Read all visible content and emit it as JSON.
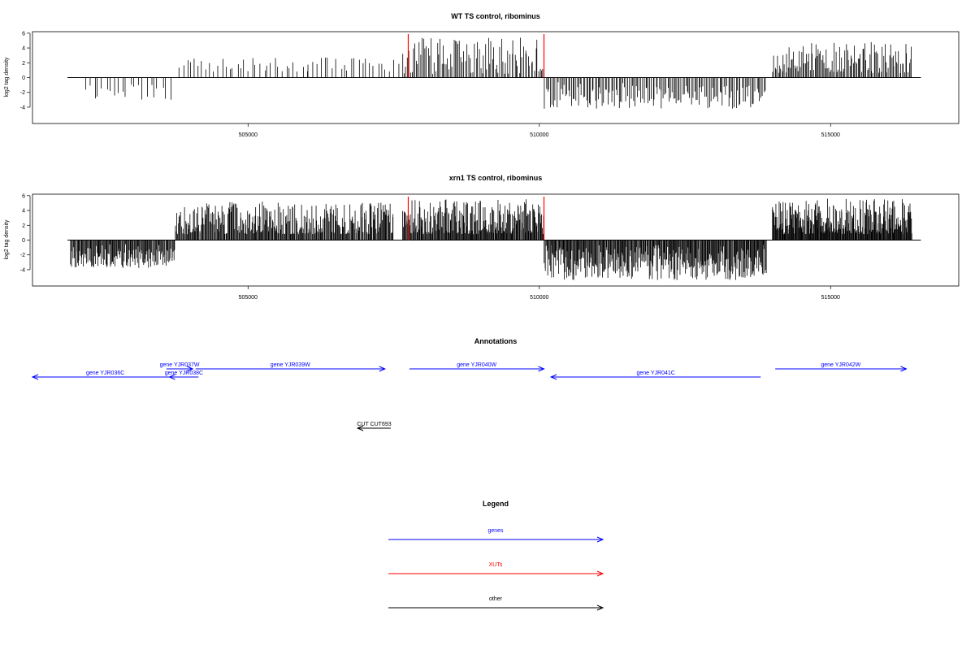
{
  "chart_data": [
    {
      "type": "bar",
      "title": "WT TS control, ribominus",
      "ylabel": "log2 tag density",
      "xlabel": "",
      "xlim": [
        501300,
        517200
      ],
      "ylim": [
        -6.2,
        6.2
      ],
      "x_ticks": [
        505000,
        510000,
        515000
      ],
      "x_tick_labels": [
        "505000",
        "510000",
        "515000"
      ],
      "y_ticks": [
        -4,
        -2,
        0,
        2,
        4,
        6
      ],
      "y_tick_labels": [
        "-4",
        "-2",
        "0",
        "2",
        "4",
        "6"
      ],
      "grid": false,
      "baseline": {
        "start": 501900,
        "end": 516550
      },
      "markers": [
        507750,
        510080
      ],
      "marker_color": "#ff0000",
      "bar_color": "#000000",
      "segments": [
        {
          "start": 502200,
          "end": 503700,
          "count": 22,
          "min": -3.1,
          "max": -0.8,
          "seed": 11
        },
        {
          "start": 503800,
          "end": 507600,
          "count": 58,
          "min": 0.8,
          "max": 2.8,
          "seed": 23
        },
        {
          "start": 507650,
          "end": 510080,
          "count": 95,
          "min": 0.5,
          "max": 5.4,
          "seed": 37
        },
        {
          "start": 510080,
          "end": 513900,
          "count": 150,
          "min": -4.2,
          "max": -0.6,
          "seed": 41
        },
        {
          "start": 514000,
          "end": 516400,
          "count": 120,
          "min": 0.6,
          "max": 4.9,
          "seed": 53
        }
      ]
    },
    {
      "type": "bar",
      "title": "xrn1 TS control, ribominus",
      "ylabel": "log2 tag density",
      "xlabel": "",
      "xlim": [
        501300,
        517200
      ],
      "ylim": [
        -6.2,
        6.2
      ],
      "x_ticks": [
        505000,
        510000,
        515000
      ],
      "x_tick_labels": [
        "505000",
        "510000",
        "515000"
      ],
      "y_ticks": [
        -4,
        -2,
        0,
        2,
        4,
        6
      ],
      "y_tick_labels": [
        "-4",
        "-2",
        "0",
        "2",
        "4",
        "6"
      ],
      "grid": false,
      "baseline": {
        "start": 501900,
        "end": 516550
      },
      "markers": [
        507750,
        510080
      ],
      "marker_color": "#ff0000",
      "bar_color": "#000000",
      "segments": [
        {
          "start": 501950,
          "end": 503750,
          "count": 140,
          "min": -3.8,
          "max": -0.5,
          "seed": 61
        },
        {
          "start": 503750,
          "end": 507500,
          "count": 300,
          "min": 0.8,
          "max": 5.2,
          "seed": 67
        },
        {
          "start": 507650,
          "end": 510080,
          "count": 220,
          "min": 0.8,
          "max": 5.6,
          "seed": 71
        },
        {
          "start": 510080,
          "end": 513900,
          "count": 330,
          "min": -5.4,
          "max": -0.6,
          "seed": 79
        },
        {
          "start": 514000,
          "end": 516400,
          "count": 260,
          "min": 0.8,
          "max": 5.6,
          "seed": 83
        }
      ]
    }
  ],
  "annotations": {
    "title": "Annotations",
    "features": [
      {
        "label": "gene YJR036C",
        "start": 501300,
        "end": 503800,
        "strand": "-",
        "row": 2,
        "color": "#0000ff"
      },
      {
        "label": "gene YJR037W",
        "start": 503600,
        "end": 504050,
        "strand": "+",
        "row": 1,
        "color": "#0000ff"
      },
      {
        "label": "gene YJR038C",
        "start": 503650,
        "end": 504150,
        "strand": "-",
        "row": 2,
        "color": "#0000ff"
      },
      {
        "label": "gene YJR039W",
        "start": 504100,
        "end": 507350,
        "strand": "+",
        "row": 1,
        "color": "#0000ff"
      },
      {
        "label": "gene YJR040W",
        "start": 507770,
        "end": 510080,
        "strand": "+",
        "row": 1,
        "color": "#0000ff"
      },
      {
        "label": "gene YJR041C",
        "start": 510200,
        "end": 513800,
        "strand": "-",
        "row": 2,
        "color": "#0000ff"
      },
      {
        "label": "gene YJR042W",
        "start": 514050,
        "end": 516300,
        "strand": "+",
        "row": 1,
        "color": "#0000ff"
      },
      {
        "label": "CUT CUT693",
        "start": 506880,
        "end": 507450,
        "strand": "-",
        "row": 3,
        "color": "#000000"
      }
    ]
  },
  "legend": {
    "title": "Legend",
    "items": [
      {
        "label": "genes",
        "color": "#0000ff"
      },
      {
        "label": "XUTs",
        "color": "#ff0000"
      },
      {
        "label": "other",
        "color": "#000000"
      }
    ]
  }
}
